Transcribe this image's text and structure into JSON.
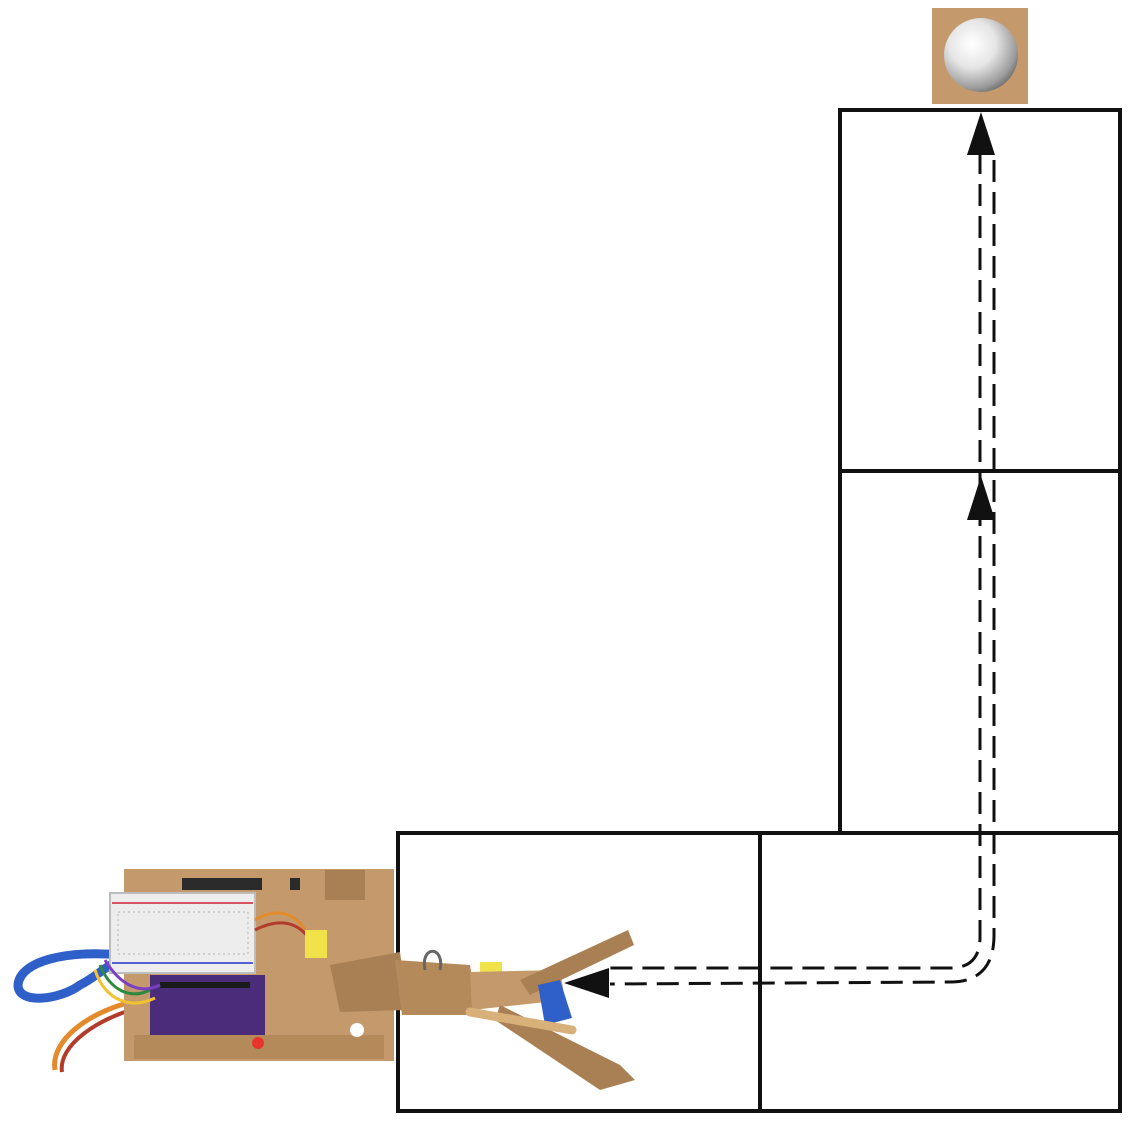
{
  "diagram": {
    "grid_cells": [
      {
        "id": "tile-bottom-left"
      },
      {
        "id": "tile-bottom-right"
      },
      {
        "id": "tile-middle-right"
      },
      {
        "id": "tile-top-right"
      }
    ],
    "path": {
      "style": "dashed",
      "direction": "robot-to-target"
    },
    "target": {
      "icon": "ball-icon",
      "color": "#C8A06E"
    },
    "robot": {
      "icon": "robot-arm-icon"
    },
    "colors": {
      "line": "#111111",
      "cardboard": "#C49A6C",
      "cardboard_dark": "#8E6A42",
      "breadboard": "#EDEDED",
      "board_purple": "#4A2C7A",
      "tape_yellow": "#F2E24A",
      "cable_blue": "#2F5FC8",
      "wire_orange": "#E38B2C",
      "led_red": "#E8352B"
    }
  }
}
